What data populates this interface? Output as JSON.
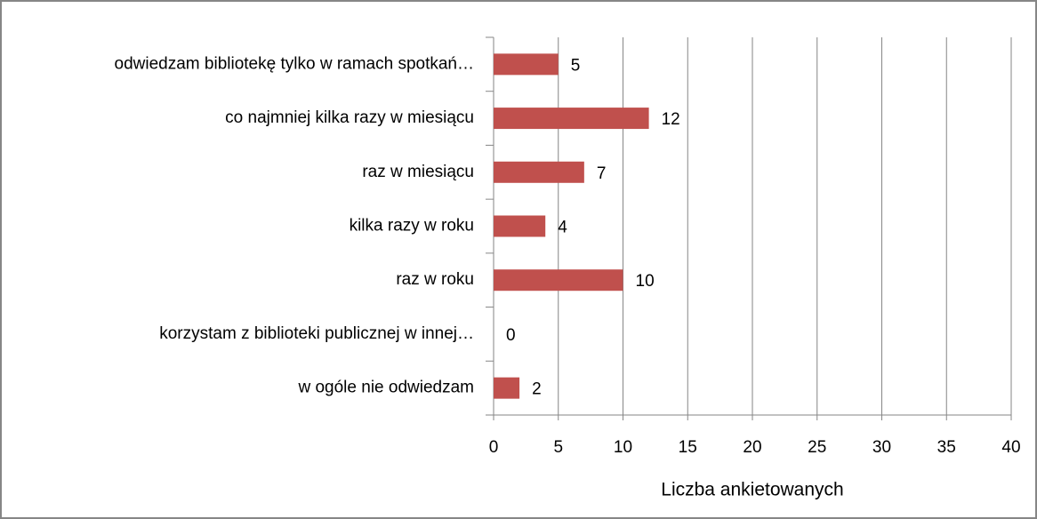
{
  "chart_data": {
    "type": "bar",
    "orientation": "horizontal",
    "categories": [
      "odwiedzam bibliotekę tylko w ramach spotkań…",
      "co najmniej kilka razy w miesiącu",
      "raz w miesiącu",
      "kilka razy w roku",
      "raz w roku",
      "korzystam z biblioteki publicznej w innej…",
      "w ogóle nie odwiedzam"
    ],
    "values": [
      5,
      12,
      7,
      4,
      10,
      0,
      2
    ],
    "color": "#c0504d",
    "xlabel": "Liczba ankietowanych",
    "xlim": [
      0,
      40
    ],
    "xticks": [
      0,
      5,
      10,
      15,
      20,
      25,
      30,
      35,
      40
    ],
    "grid": true
  }
}
